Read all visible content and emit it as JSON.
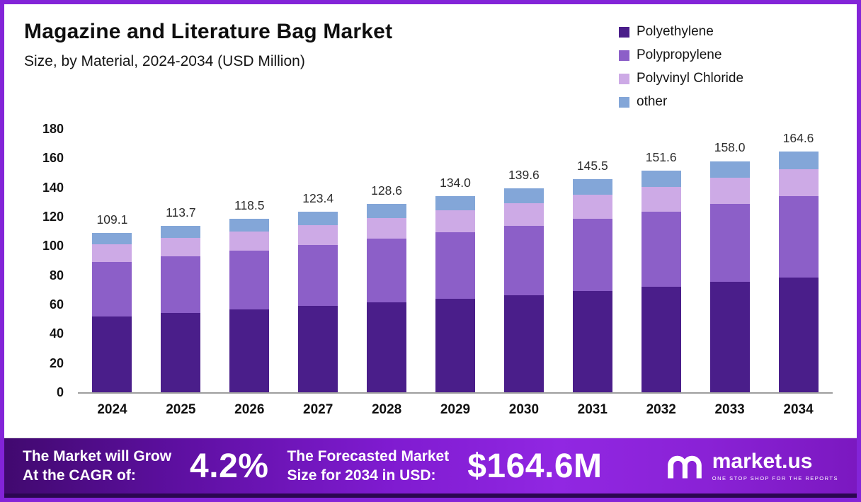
{
  "header": {
    "title": "Magazine and Literature Bag Market",
    "subtitle": "Size, by Material, 2024-2034 (USD Million)"
  },
  "chart_data": {
    "type": "bar",
    "stacked": true,
    "title": "Magazine and Literature Bag Market Size, by Material, 2024-2034 (USD Million)",
    "categories": [
      "2024",
      "2025",
      "2026",
      "2027",
      "2028",
      "2029",
      "2030",
      "2031",
      "2032",
      "2033",
      "2034"
    ],
    "series": [
      {
        "name": "Polyethylene",
        "color": "#4a1e8a",
        "values": [
          52.0,
          54.2,
          56.5,
          58.8,
          61.3,
          63.9,
          66.5,
          69.3,
          72.2,
          75.3,
          78.4
        ]
      },
      {
        "name": "Polypropylene",
        "color": "#8c5fc8",
        "values": [
          37.0,
          38.6,
          40.2,
          41.9,
          43.6,
          45.5,
          47.4,
          49.4,
          51.4,
          53.6,
          55.8
        ]
      },
      {
        "name": "Polyvinyl Chloride",
        "color": "#cdaae6",
        "values": [
          12.1,
          12.6,
          13.1,
          13.7,
          14.3,
          14.9,
          15.5,
          16.1,
          16.8,
          17.5,
          18.3
        ]
      },
      {
        "name": "other",
        "color": "#83a6d8",
        "values": [
          8.0,
          8.3,
          8.7,
          9.0,
          9.4,
          9.7,
          10.2,
          10.7,
          11.2,
          11.6,
          12.1
        ]
      }
    ],
    "totals": [
      109.1,
      113.7,
      118.5,
      123.4,
      128.6,
      134.0,
      139.6,
      145.5,
      151.6,
      158.0,
      164.6
    ],
    "xlabel": "",
    "ylabel": "",
    "ylim": [
      0,
      180
    ],
    "ytick_step": 20,
    "grid": false,
    "legend_position": "top-right"
  },
  "banner": {
    "left_line1": "The Market will Grow",
    "left_line2": "At the CAGR of:",
    "cagr": "4.2%",
    "mid_line1": "The Forecasted Market",
    "mid_line2": "Size for 2034 in USD:",
    "forecast": "$164.6M",
    "brand": "market.us",
    "brand_tagline": "ONE STOP SHOP FOR THE REPORTS"
  },
  "colors": {
    "frame_border": "#8324d8",
    "banner_dark": "#41096f",
    "banner_bright": "#9127e2",
    "bottom_strip": "#2b0751"
  }
}
